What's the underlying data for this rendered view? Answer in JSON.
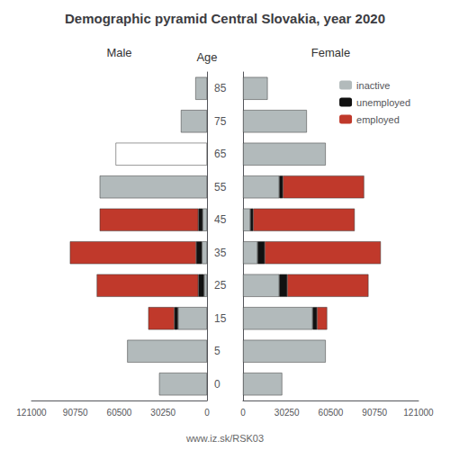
{
  "chart_data": [
    {
      "type": "bar",
      "orientation": "horizontal",
      "stacked": true,
      "grid": false,
      "title": "Demographic pyramid Central Slovakia, year 2020",
      "subtitle": "Male",
      "ylabel": "Age",
      "annotations": [
        "www.iz.sk/RSK03"
      ],
      "categories": [
        "0",
        "5",
        "15",
        "25",
        "35",
        "45",
        "55",
        "65",
        "75",
        "85"
      ],
      "xlim": [
        121000,
        0
      ],
      "xticks": [
        121000,
        90750,
        60500,
        30250,
        0
      ],
      "series": [
        {
          "name": "inactive",
          "color": "#b2babb",
          "colors": [
            "#b2babb",
            "#b2babb",
            "#b2babb",
            "#b2babb",
            "#b2babb",
            "#b2babb",
            "#b2babb",
            "#ffffff",
            "#b2babb",
            "#b2babb"
          ],
          "values": [
            33000,
            55000,
            20000,
            2000,
            3500,
            3000,
            74000,
            63000,
            18000,
            8000
          ]
        },
        {
          "name": "unemployed",
          "color": "#111111",
          "values": [
            0,
            0,
            2500,
            4000,
            4000,
            3000,
            0,
            0,
            0,
            0
          ]
        },
        {
          "name": "employed",
          "color": "#c0392b",
          "values": [
            0,
            0,
            18000,
            70000,
            87000,
            68000,
            0,
            0,
            0,
            0
          ]
        }
      ]
    },
    {
      "type": "bar",
      "orientation": "horizontal",
      "stacked": true,
      "grid": false,
      "subtitle": "Female",
      "tick_labels": "x",
      "legend": "upper right",
      "categories": [
        "0",
        "5",
        "15",
        "25",
        "35",
        "45",
        "55",
        "65",
        "75",
        "85"
      ],
      "xlim": [
        0,
        121000
      ],
      "xticks": [
        0,
        30250,
        60500,
        90750,
        121000
      ],
      "series": [
        {
          "name": "inactive",
          "color": "#b2babb",
          "values": [
            27000,
            57000,
            48000,
            25000,
            10000,
            5000,
            25000,
            57000,
            44000,
            17000
          ]
        },
        {
          "name": "unemployed",
          "color": "#111111",
          "values": [
            0,
            0,
            3000,
            5500,
            5000,
            2000,
            2500,
            0,
            0,
            0
          ]
        },
        {
          "name": "employed",
          "color": "#c0392b",
          "values": [
            0,
            0,
            7000,
            56000,
            80000,
            70000,
            56000,
            0,
            0,
            0
          ]
        }
      ]
    }
  ]
}
